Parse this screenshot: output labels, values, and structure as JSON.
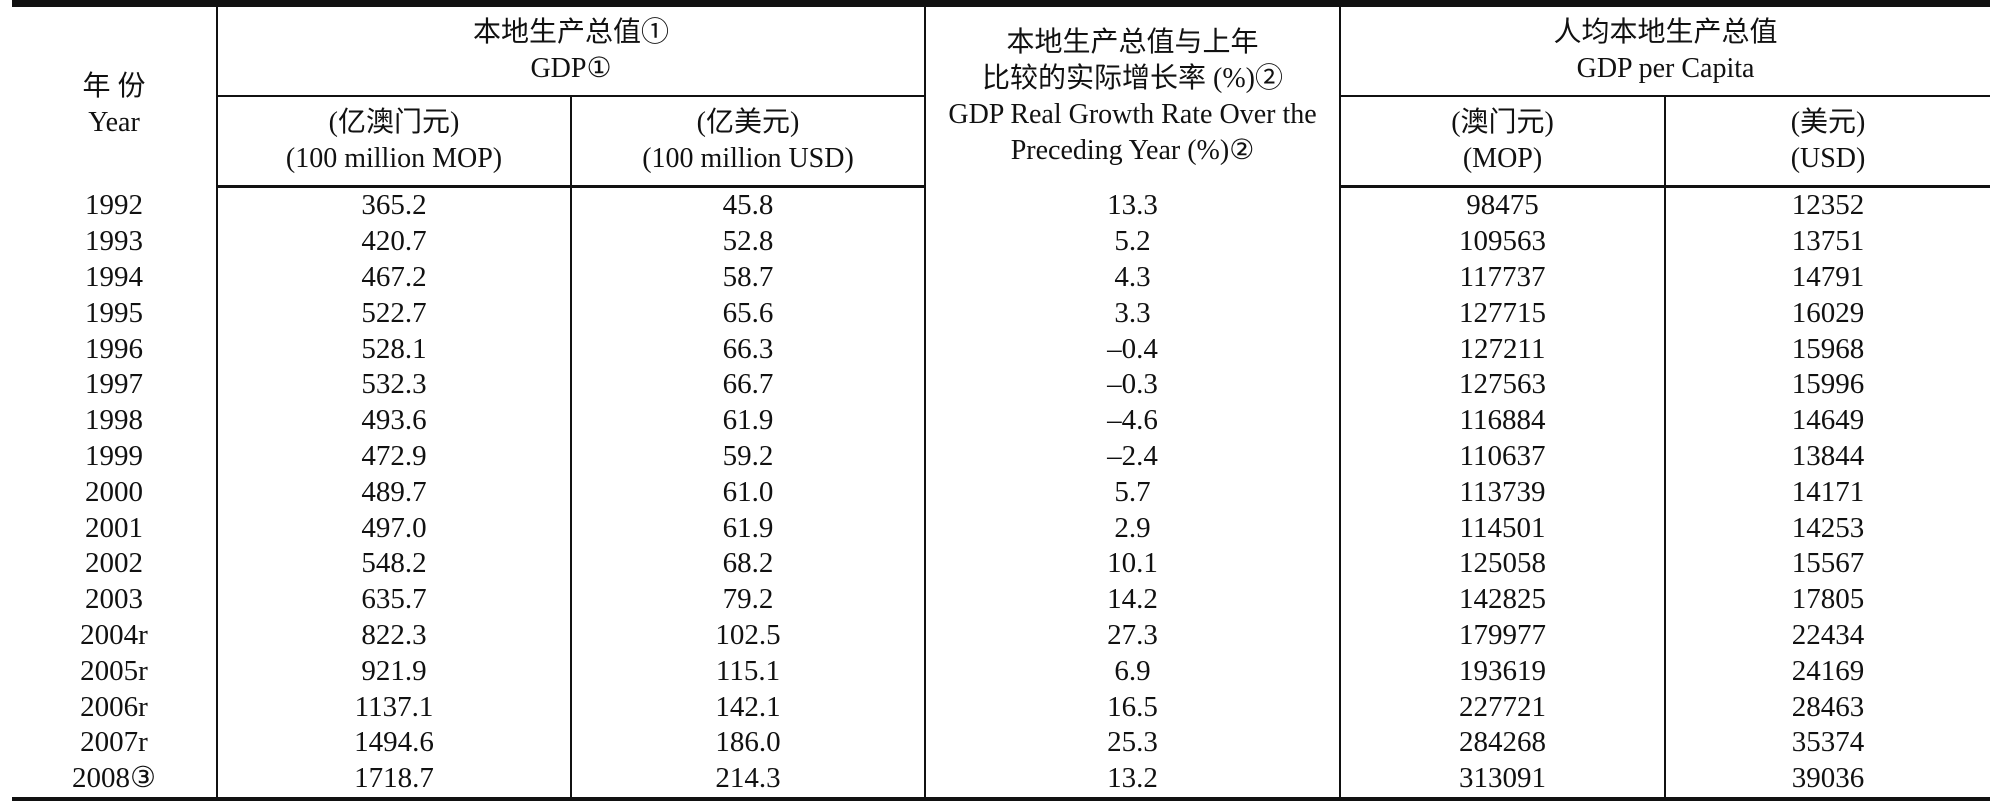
{
  "headers": {
    "year_zh": "年 份",
    "year_en": "Year",
    "gdp_zh": "本地生产总值①",
    "gdp_en": "GDP①",
    "growth_zh_1": "本地生产总值与上年",
    "growth_zh_2": "比较的实际增长率 (%)②",
    "growth_en_1": "GDP Real Growth Rate Over the",
    "growth_en_2": "Preceding Year (%)②",
    "percap_zh": "人均本地生产总值",
    "percap_en": "GDP per Capita",
    "mop100_zh": "(亿澳门元)",
    "mop100_en": "(100 million MOP)",
    "usd100_zh": "(亿美元)",
    "usd100_en": "(100 million USD)",
    "mop_zh": "(澳门元)",
    "mop_en": "(MOP)",
    "usd_zh": "(美元)",
    "usd_en": "(USD)"
  },
  "rows": [
    {
      "year": "1992",
      "gdp_mop": "365.2",
      "gdp_usd": "45.8",
      "growth": "13.3",
      "pc_mop": "98475",
      "pc_usd": "12352"
    },
    {
      "year": "1993",
      "gdp_mop": "420.7",
      "gdp_usd": "52.8",
      "growth": "5.2",
      "pc_mop": "109563",
      "pc_usd": "13751"
    },
    {
      "year": "1994",
      "gdp_mop": "467.2",
      "gdp_usd": "58.7",
      "growth": "4.3",
      "pc_mop": "117737",
      "pc_usd": "14791"
    },
    {
      "year": "1995",
      "gdp_mop": "522.7",
      "gdp_usd": "65.6",
      "growth": "3.3",
      "pc_mop": "127715",
      "pc_usd": "16029"
    },
    {
      "year": "1996",
      "gdp_mop": "528.1",
      "gdp_usd": "66.3",
      "growth": "–0.4",
      "pc_mop": "127211",
      "pc_usd": "15968"
    },
    {
      "year": "1997",
      "gdp_mop": "532.3",
      "gdp_usd": "66.7",
      "growth": "–0.3",
      "pc_mop": "127563",
      "pc_usd": "15996"
    },
    {
      "year": "1998",
      "gdp_mop": "493.6",
      "gdp_usd": "61.9",
      "growth": "–4.6",
      "pc_mop": "116884",
      "pc_usd": "14649"
    },
    {
      "year": "1999",
      "gdp_mop": "472.9",
      "gdp_usd": "59.2",
      "growth": "–2.4",
      "pc_mop": "110637",
      "pc_usd": "13844"
    },
    {
      "year": "2000",
      "gdp_mop": "489.7",
      "gdp_usd": "61.0",
      "growth": "5.7",
      "pc_mop": "113739",
      "pc_usd": "14171"
    },
    {
      "year": "2001",
      "gdp_mop": "497.0",
      "gdp_usd": "61.9",
      "growth": "2.9",
      "pc_mop": "114501",
      "pc_usd": "14253"
    },
    {
      "year": "2002",
      "gdp_mop": "548.2",
      "gdp_usd": "68.2",
      "growth": "10.1",
      "pc_mop": "125058",
      "pc_usd": "15567"
    },
    {
      "year": "2003",
      "gdp_mop": "635.7",
      "gdp_usd": "79.2",
      "growth": "14.2",
      "pc_mop": "142825",
      "pc_usd": "17805"
    },
    {
      "year": "2004r",
      "gdp_mop": "822.3",
      "gdp_usd": "102.5",
      "growth": "27.3",
      "pc_mop": "179977",
      "pc_usd": "22434"
    },
    {
      "year": "2005r",
      "gdp_mop": "921.9",
      "gdp_usd": "115.1",
      "growth": "6.9",
      "pc_mop": "193619",
      "pc_usd": "24169"
    },
    {
      "year": "2006r",
      "gdp_mop": "1137.1",
      "gdp_usd": "142.1",
      "growth": "16.5",
      "pc_mop": "227721",
      "pc_usd": "28463"
    },
    {
      "year": "2007r",
      "gdp_mop": "1494.6",
      "gdp_usd": "186.0",
      "growth": "25.3",
      "pc_mop": "284268",
      "pc_usd": "35374"
    },
    {
      "year": "2008③",
      "gdp_mop": "1718.7",
      "gdp_usd": "214.3",
      "growth": "13.2",
      "pc_mop": "313091",
      "pc_usd": "39036"
    }
  ]
}
